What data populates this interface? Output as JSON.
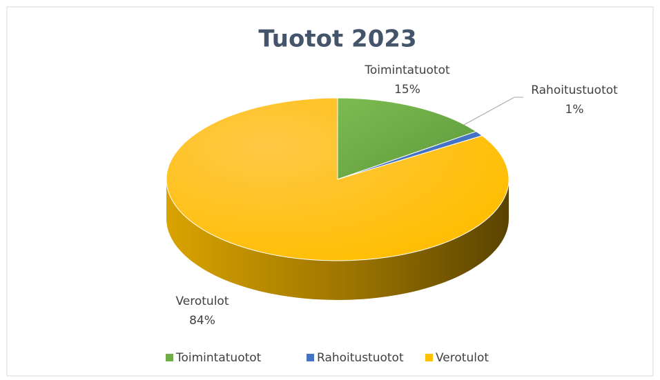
{
  "chart_data": {
    "type": "pie3d",
    "title": "Tuotot 2023",
    "categories": [
      "Toimintatuotot",
      "Rahoitustuotot",
      "Verotulot"
    ],
    "values": [
      15,
      1,
      84
    ],
    "value_labels": [
      "15%",
      "1%",
      "84%"
    ],
    "colors": [
      "#70ad47",
      "#4472c4",
      "#ffc000"
    ],
    "legend": "bottom"
  }
}
